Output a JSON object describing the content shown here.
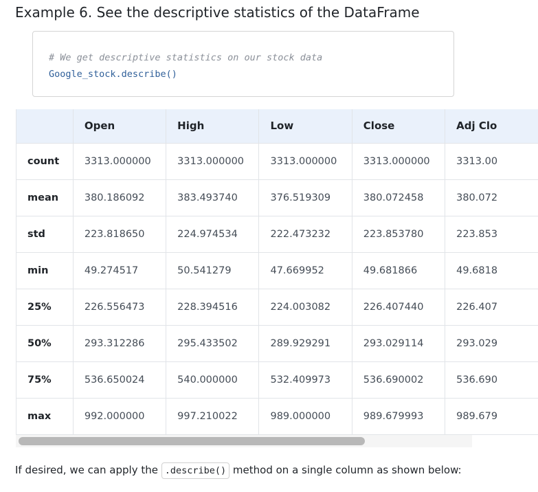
{
  "heading": "Example 6. See the descriptive statistics of the DataFrame",
  "code": {
    "comment": "# We get descriptive statistics on our stock data",
    "line": "Google_stock.describe()"
  },
  "table": {
    "columns": [
      "",
      "Open",
      "High",
      "Low",
      "Close",
      "Adj Clo"
    ],
    "rows": [
      {
        "label": "count",
        "values": [
          "3313.000000",
          "3313.000000",
          "3313.000000",
          "3313.000000",
          "3313.00"
        ]
      },
      {
        "label": "mean",
        "values": [
          "380.186092",
          "383.493740",
          "376.519309",
          "380.072458",
          "380.072"
        ]
      },
      {
        "label": "std",
        "values": [
          "223.818650",
          "224.974534",
          "222.473232",
          "223.853780",
          "223.853"
        ]
      },
      {
        "label": "min",
        "values": [
          "49.274517",
          "50.541279",
          "47.669952",
          "49.681866",
          "49.6818"
        ]
      },
      {
        "label": "25%",
        "values": [
          "226.556473",
          "228.394516",
          "224.003082",
          "226.407440",
          "226.407"
        ]
      },
      {
        "label": "50%",
        "values": [
          "293.312286",
          "295.433502",
          "289.929291",
          "293.029114",
          "293.029"
        ]
      },
      {
        "label": "75%",
        "values": [
          "536.650024",
          "540.000000",
          "532.409973",
          "536.690002",
          "536.690"
        ]
      },
      {
        "label": "max",
        "values": [
          "992.000000",
          "997.210022",
          "989.000000",
          "989.679993",
          "989.679"
        ]
      }
    ]
  },
  "paragraph": {
    "before": "If desired, we can apply the ",
    "code": ".describe()",
    "after": " method on a single column as shown below:"
  },
  "colors": {
    "header_bg": "#eaf1fb",
    "code_comment": "#8a8f98",
    "code_text": "#2f5f99",
    "scroll_thumb": "#b8b8b8"
  }
}
